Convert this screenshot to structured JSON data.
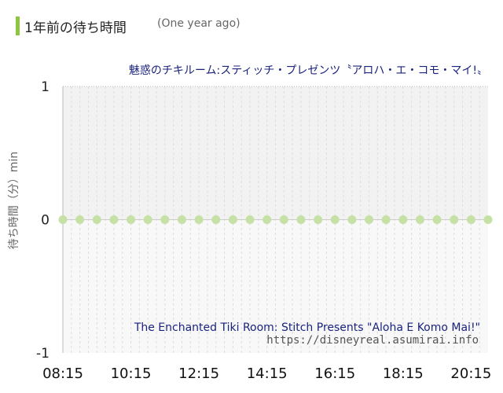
{
  "header": {
    "title": "1年前の待ち時間",
    "subtitle": "(One year ago)",
    "accent_color": "#8cc63f"
  },
  "attraction": {
    "name_ja": "魅惑のチキルーム:スティッチ・プレゼンツ〝アロハ・エ・コモ・マイ!〟",
    "name_en": "The Enchanted Tiki Room: Stitch Presents \"Aloha E Komo Mai!\"",
    "source": "https://disneyreal.asumirai.info"
  },
  "chart_data": {
    "type": "line",
    "title": "",
    "ylabel": "待ち時間（分）min",
    "xlabel": "",
    "ylim": [
      -1,
      1
    ],
    "yticks": [
      "1",
      "0",
      "-1"
    ],
    "xticks": [
      "08:15",
      "10:15",
      "12:15",
      "14:15",
      "16:15",
      "18:15",
      "20:15"
    ],
    "grid": true,
    "series": [
      {
        "color": "#c5e1a5",
        "x": [
          "08:15",
          "08:45",
          "09:15",
          "09:45",
          "10:15",
          "10:45",
          "11:15",
          "11:45",
          "12:15",
          "12:45",
          "13:15",
          "13:45",
          "14:15",
          "14:45",
          "15:15",
          "15:45",
          "16:15",
          "16:45",
          "17:15",
          "17:45",
          "18:15",
          "18:45",
          "19:15",
          "19:45",
          "20:15",
          "20:45"
        ],
        "values": [
          0,
          0,
          0,
          0,
          0,
          0,
          0,
          0,
          0,
          0,
          0,
          0,
          0,
          0,
          0,
          0,
          0,
          0,
          0,
          0,
          0,
          0,
          0,
          0,
          0,
          0
        ]
      }
    ]
  }
}
